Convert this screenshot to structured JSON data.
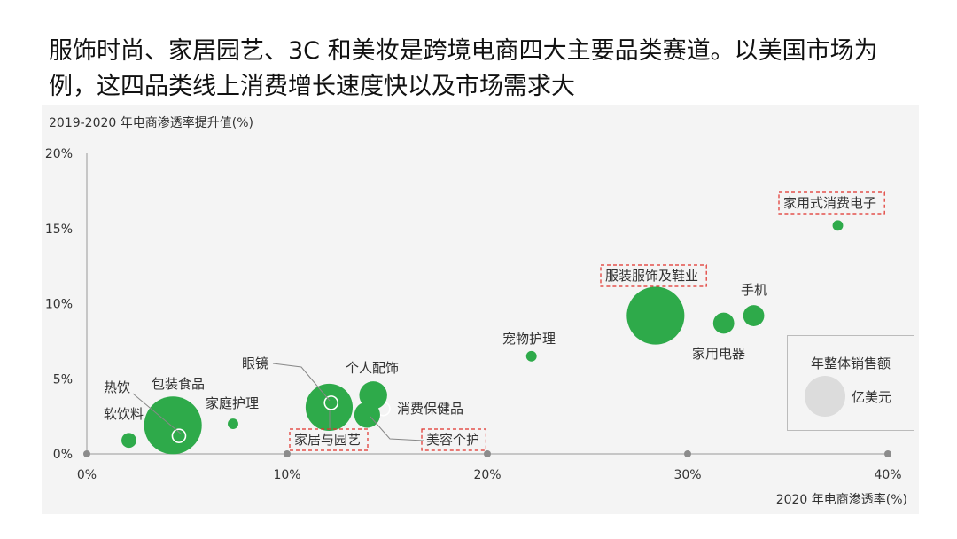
{
  "headline": "服饰时尚、家居园艺、3C 和美妆是跨境电商四大主要品类赛道。以美国市场为例，这四品类线上消费增长速度快以及市场需求大",
  "legend": {
    "title": "年整体销售额",
    "unit": "亿美元"
  },
  "colors": {
    "bubble": "#2eaa4a",
    "highlight_box": "#e0312b",
    "axis": "#999999",
    "text": "#333333"
  },
  "chart_data": {
    "type": "scatter",
    "xlabel": "2020 年电商渗透率(%)",
    "ylabel": "2019-2020 年电商渗透率提升值(%)",
    "xlim": [
      0,
      40
    ],
    "ylim": [
      0,
      20
    ],
    "xticks": [
      "0%",
      "10%",
      "20%",
      "30%",
      "40%"
    ],
    "yticks": [
      "0%",
      "5%",
      "10%",
      "15%",
      "20%"
    ],
    "size_encoding": "年整体销售额",
    "grid": false,
    "points": [
      {
        "label": "热饮",
        "x": 4.6,
        "y": 1.2,
        "size": 20,
        "hollow": true
      },
      {
        "label": "软饮料",
        "x": 2.1,
        "y": 0.9,
        "size": 4
      },
      {
        "label": "包装食品",
        "x": 4.3,
        "y": 1.9,
        "size": 60
      },
      {
        "label": "家庭护理",
        "x": 7.3,
        "y": 2.0,
        "size": 2
      },
      {
        "label": "眼镜",
        "x": 12.2,
        "y": 3.4,
        "size": 20,
        "hollow": true
      },
      {
        "label": "家居与园艺",
        "x": 12.1,
        "y": 3.1,
        "size": 40,
        "highlight": true
      },
      {
        "label": "个人配饰",
        "x": 14.3,
        "y": 3.9,
        "size": 14
      },
      {
        "label": "美容个护",
        "x": 14.0,
        "y": 2.6,
        "size": 12,
        "highlight": true
      },
      {
        "label": "消费保健品",
        "x": 14.8,
        "y": 3.0,
        "size": 20,
        "hollow": true
      },
      {
        "label": "宠物护理",
        "x": 22.2,
        "y": 6.5,
        "size": 2
      },
      {
        "label": "服装服饰及鞋业",
        "x": 28.4,
        "y": 9.2,
        "size": 60,
        "highlight": true
      },
      {
        "label": "家用电器",
        "x": 31.8,
        "y": 8.7,
        "size": 8
      },
      {
        "label": "手机",
        "x": 33.3,
        "y": 9.2,
        "size": 8
      },
      {
        "label": "家用式消费电子",
        "x": 37.5,
        "y": 15.2,
        "size": 2,
        "highlight": true
      }
    ]
  }
}
